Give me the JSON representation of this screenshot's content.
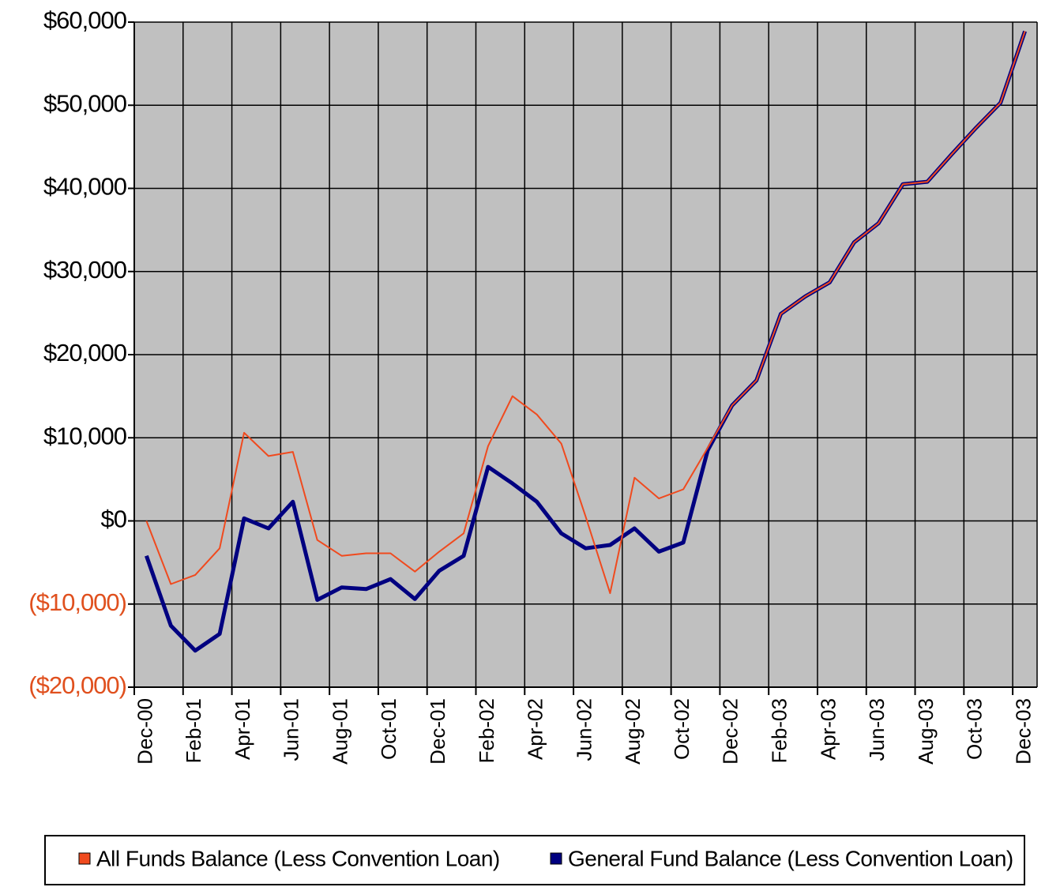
{
  "chart_data": {
    "type": "line",
    "categories": [
      "Dec-00",
      null,
      "Feb-01",
      null,
      "Apr-01",
      null,
      "Jun-01",
      null,
      "Aug-01",
      null,
      "Oct-01",
      null,
      "Dec-01",
      null,
      "Feb-02",
      null,
      "Apr-02",
      null,
      "Jun-02",
      null,
      "Aug-02",
      null,
      "Oct-02",
      null,
      "Dec-02",
      null,
      "Feb-03",
      null,
      "Apr-03",
      null,
      "Jun-03",
      null,
      "Aug-03",
      null,
      "Oct-03",
      null,
      "Dec-03"
    ],
    "series": [
      {
        "name": "All Funds Balance (Less Convention Loan)",
        "color": "#f04a1e",
        "values": [
          0,
          -7600,
          -6500,
          -3300,
          10600,
          7800,
          8300,
          -2300,
          -4200,
          -3900,
          -3900,
          -6100,
          -3700,
          -1500,
          9000,
          15000,
          12800,
          9300,
          500,
          -8700,
          5200,
          2700,
          3800,
          8800,
          13900,
          16900,
          24900,
          27000,
          28700,
          33500,
          35800,
          40500,
          40800,
          44100,
          47300,
          50300,
          58900
        ]
      },
      {
        "name": "General Fund Balance (Less Convention Loan)",
        "color": "#000080",
        "values": [
          -4200,
          -12600,
          -15600,
          -13600,
          300,
          -900,
          2300,
          -9500,
          -8000,
          -8200,
          -7000,
          -9400,
          -6000,
          -4200,
          6500,
          4500,
          2300,
          -1500,
          -3300,
          -2900,
          -900,
          -3700,
          -2600,
          8500,
          13900,
          16900,
          24900,
          27000,
          28700,
          33500,
          35800,
          40500,
          40800,
          44100,
          47300,
          50300,
          58900
        ]
      }
    ],
    "ylim": [
      -20000,
      60000
    ],
    "yticks": [
      {
        "value": -20000,
        "label": "($20,000)"
      },
      {
        "value": -10000,
        "label": "($10,000)"
      },
      {
        "value": 0,
        "label": "$0"
      },
      {
        "value": 10000,
        "label": "$10,000"
      },
      {
        "value": 20000,
        "label": "$20,000"
      },
      {
        "value": 30000,
        "label": "$30,000"
      },
      {
        "value": 40000,
        "label": "$40,000"
      },
      {
        "value": 50000,
        "label": "$50,000"
      },
      {
        "value": 60000,
        "label": "$60,000"
      }
    ],
    "negative_tick_color": "#e0501e",
    "plot_background": "#c0c0c0",
    "grid": true,
    "legend": "bottom"
  }
}
